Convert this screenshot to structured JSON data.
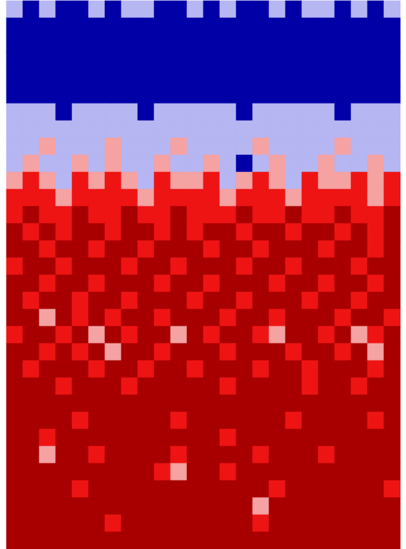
{
  "chart_data": {
    "type": "heatmap",
    "cells": [
      [
        1,
        0,
        1,
        0,
        0,
        1,
        0,
        1,
        1,
        0,
        0,
        1,
        0,
        1,
        0,
        0,
        1,
        0,
        1,
        1,
        0,
        1,
        0,
        1
      ],
      [
        0,
        0,
        0,
        0,
        0,
        0,
        0,
        0,
        0,
        0,
        0,
        0,
        0,
        0,
        0,
        0,
        0,
        0,
        0,
        0,
        0,
        0,
        0,
        0
      ],
      [
        0,
        0,
        0,
        0,
        0,
        0,
        0,
        0,
        0,
        0,
        0,
        0,
        0,
        0,
        0,
        0,
        0,
        0,
        0,
        0,
        0,
        0,
        0,
        0
      ],
      [
        0,
        0,
        0,
        0,
        0,
        0,
        0,
        0,
        0,
        0,
        0,
        0,
        0,
        0,
        0,
        0,
        0,
        0,
        0,
        0,
        0,
        0,
        0,
        0
      ],
      [
        0,
        0,
        0,
        0,
        0,
        0,
        0,
        0,
        0,
        0,
        0,
        0,
        0,
        0,
        0,
        0,
        0,
        0,
        0,
        0,
        0,
        0,
        0,
        0
      ],
      [
        0,
        0,
        0,
        0,
        0,
        0,
        0,
        0,
        0,
        0,
        0,
        0,
        0,
        0,
        0,
        0,
        0,
        0,
        0,
        0,
        0,
        0,
        0,
        0
      ],
      [
        1,
        1,
        1,
        0,
        1,
        1,
        1,
        1,
        0,
        1,
        1,
        1,
        1,
        1,
        0,
        1,
        1,
        1,
        1,
        1,
        0,
        1,
        1,
        1
      ],
      [
        1,
        1,
        1,
        1,
        1,
        1,
        1,
        1,
        1,
        1,
        1,
        1,
        1,
        1,
        1,
        1,
        1,
        1,
        1,
        1,
        1,
        1,
        1,
        1
      ],
      [
        1,
        1,
        2,
        1,
        1,
        1,
        2,
        1,
        1,
        1,
        2,
        1,
        1,
        1,
        1,
        2,
        1,
        1,
        1,
        1,
        2,
        1,
        1,
        1
      ],
      [
        1,
        2,
        1,
        1,
        2,
        1,
        2,
        1,
        1,
        2,
        1,
        1,
        2,
        1,
        0,
        1,
        2,
        1,
        1,
        2,
        1,
        1,
        2,
        1
      ],
      [
        2,
        3,
        2,
        1,
        3,
        2,
        3,
        2,
        1,
        3,
        2,
        2,
        3,
        1,
        2,
        3,
        2,
        1,
        3,
        2,
        2,
        3,
        2,
        3
      ],
      [
        3,
        3,
        3,
        2,
        3,
        3,
        3,
        3,
        2,
        3,
        3,
        3,
        3,
        2,
        3,
        3,
        3,
        2,
        3,
        3,
        3,
        3,
        2,
        3
      ],
      [
        3,
        4,
        3,
        3,
        4,
        3,
        3,
        4,
        3,
        3,
        4,
        3,
        3,
        3,
        4,
        3,
        3,
        4,
        3,
        3,
        4,
        3,
        3,
        4
      ],
      [
        4,
        3,
        4,
        3,
        4,
        4,
        3,
        4,
        4,
        3,
        4,
        3,
        4,
        4,
        3,
        4,
        4,
        3,
        4,
        4,
        3,
        4,
        3,
        4
      ],
      [
        4,
        4,
        3,
        4,
        4,
        3,
        4,
        4,
        3,
        4,
        4,
        4,
        3,
        4,
        4,
        3,
        4,
        4,
        4,
        3,
        4,
        4,
        3,
        4
      ],
      [
        3,
        4,
        4,
        3,
        4,
        4,
        4,
        3,
        4,
        4,
        3,
        4,
        4,
        4,
        3,
        4,
        4,
        3,
        4,
        4,
        4,
        3,
        4,
        4
      ],
      [
        4,
        4,
        3,
        4,
        4,
        3,
        4,
        4,
        4,
        3,
        4,
        4,
        3,
        4,
        4,
        4,
        3,
        4,
        4,
        3,
        4,
        4,
        3,
        4
      ],
      [
        4,
        3,
        4,
        4,
        3,
        4,
        4,
        3,
        4,
        4,
        4,
        3,
        4,
        4,
        3,
        4,
        4,
        4,
        3,
        4,
        4,
        3,
        4,
        4
      ],
      [
        4,
        4,
        2,
        4,
        3,
        4,
        3,
        4,
        4,
        3,
        4,
        4,
        4,
        3,
        4,
        4,
        3,
        4,
        4,
        4,
        3,
        4,
        4,
        3
      ],
      [
        3,
        4,
        4,
        3,
        4,
        2,
        4,
        3,
        4,
        4,
        2,
        4,
        3,
        4,
        4,
        3,
        2,
        4,
        4,
        3,
        4,
        2,
        3,
        4
      ],
      [
        4,
        4,
        3,
        4,
        3,
        4,
        2,
        4,
        4,
        3,
        4,
        4,
        4,
        3,
        4,
        4,
        4,
        3,
        4,
        4,
        3,
        4,
        2,
        4
      ],
      [
        4,
        3,
        4,
        4,
        4,
        3,
        4,
        4,
        3,
        4,
        4,
        3,
        4,
        4,
        4,
        3,
        4,
        4,
        3,
        4,
        4,
        4,
        3,
        4
      ],
      [
        4,
        4,
        4,
        3,
        4,
        4,
        4,
        3,
        4,
        4,
        4,
        4,
        4,
        3,
        4,
        4,
        4,
        4,
        3,
        4,
        4,
        3,
        4,
        4
      ],
      [
        4,
        4,
        4,
        4,
        4,
        4,
        4,
        4,
        4,
        4,
        4,
        4,
        4,
        4,
        4,
        4,
        4,
        4,
        4,
        4,
        4,
        4,
        4,
        4
      ],
      [
        4,
        4,
        4,
        4,
        3,
        4,
        4,
        4,
        4,
        4,
        3,
        4,
        4,
        4,
        4,
        4,
        4,
        3,
        4,
        4,
        4,
        4,
        3,
        4
      ],
      [
        4,
        4,
        3,
        4,
        4,
        4,
        4,
        4,
        4,
        4,
        4,
        4,
        4,
        3,
        4,
        4,
        4,
        4,
        4,
        4,
        4,
        4,
        4,
        4
      ],
      [
        4,
        4,
        2,
        4,
        4,
        3,
        4,
        4,
        4,
        4,
        3,
        4,
        4,
        4,
        4,
        3,
        4,
        4,
        4,
        3,
        4,
        4,
        4,
        4
      ],
      [
        4,
        4,
        4,
        4,
        4,
        4,
        4,
        4,
        4,
        3,
        2,
        4,
        4,
        3,
        4,
        4,
        4,
        4,
        4,
        4,
        4,
        4,
        4,
        4
      ],
      [
        4,
        4,
        4,
        4,
        3,
        4,
        4,
        4,
        4,
        4,
        4,
        4,
        4,
        4,
        4,
        4,
        3,
        4,
        4,
        4,
        4,
        4,
        4,
        3
      ],
      [
        4,
        4,
        4,
        4,
        4,
        4,
        4,
        4,
        4,
        4,
        4,
        4,
        4,
        4,
        4,
        2,
        4,
        4,
        4,
        4,
        4,
        4,
        4,
        4
      ],
      [
        4,
        4,
        4,
        4,
        4,
        4,
        3,
        4,
        4,
        4,
        4,
        4,
        4,
        4,
        4,
        3,
        4,
        4,
        4,
        4,
        4,
        4,
        4,
        4
      ],
      [
        4,
        4,
        4,
        4,
        4,
        4,
        4,
        4,
        4,
        4,
        4,
        4,
        4,
        4,
        4,
        4,
        4,
        4,
        4,
        4,
        4,
        4,
        4,
        4
      ]
    ],
    "zlim": [
      0,
      4
    ],
    "colors": [
      "#0000a6",
      "#b6b6f2",
      "#f4a2a2",
      "#ee1414",
      "#a80000"
    ],
    "tick_labels": false
  }
}
